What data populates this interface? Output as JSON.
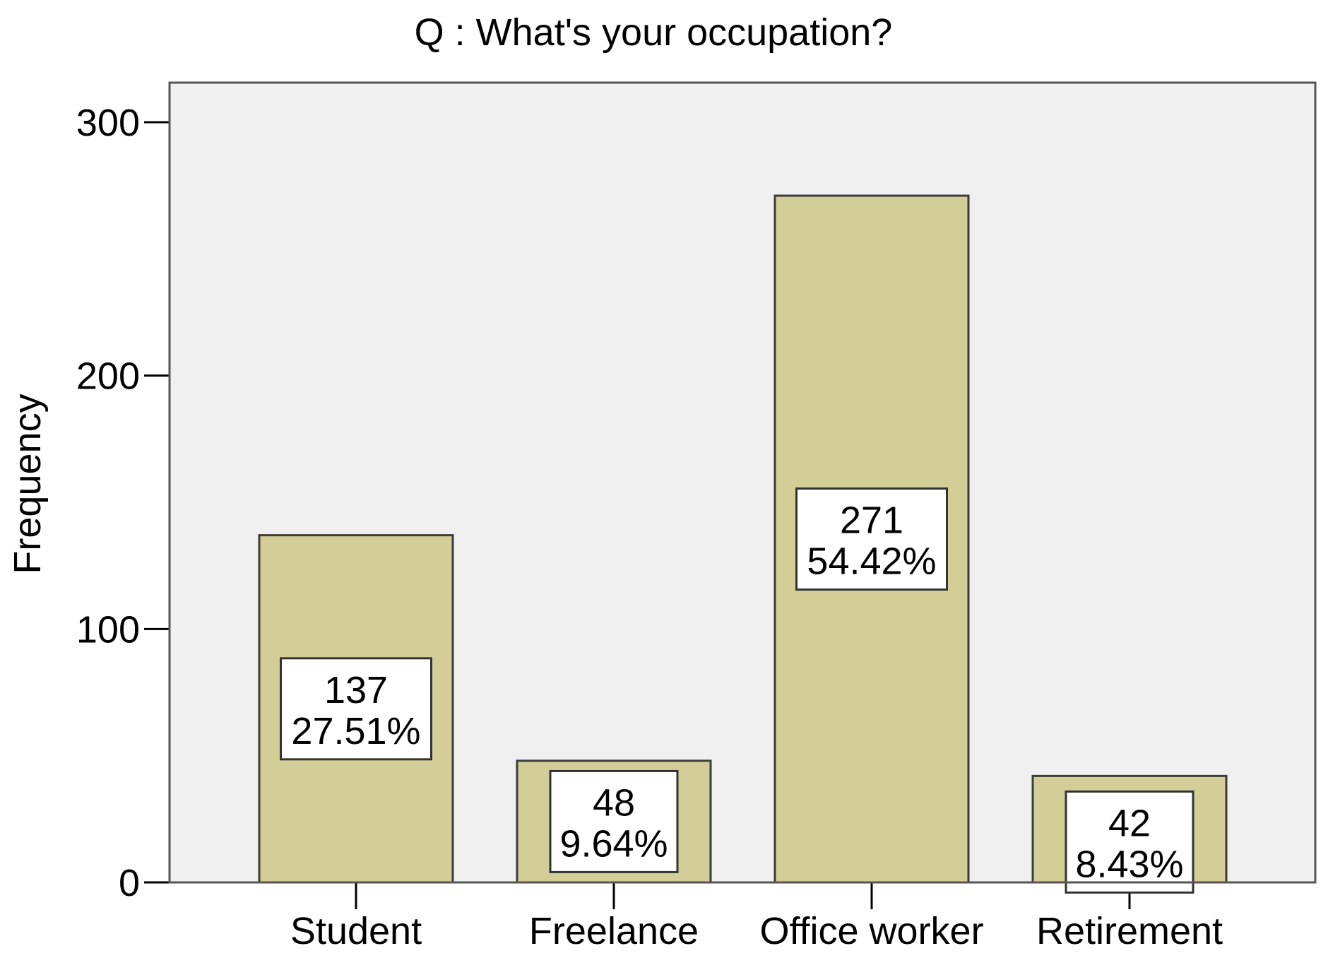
{
  "colors": {
    "plot_background": "#f0f0f0",
    "bar_fill": "#d3ce97",
    "bar_stroke": "#3c3c3c",
    "frame_stroke": "#555555",
    "label_box_fill": "#ffffff",
    "text": "#000000"
  },
  "chart_data": {
    "type": "bar",
    "title": "Q : What's your occupation?",
    "xlabel": "",
    "ylabel": "Frequency",
    "categories": [
      "Student",
      "Freelance",
      "Office worker",
      "Retirement"
    ],
    "values": [
      137,
      48,
      271,
      42
    ],
    "percent_labels": [
      "27.51%",
      "9.64%",
      "54.42%",
      "8.43%"
    ],
    "count_labels": [
      "137",
      "48",
      "271",
      "42"
    ],
    "ylim": [
      0,
      315
    ],
    "yticks": [
      0,
      100,
      200,
      300
    ],
    "ytick_labels": [
      "0",
      "100",
      "200",
      "300"
    ],
    "grid": false,
    "legend": "none"
  }
}
